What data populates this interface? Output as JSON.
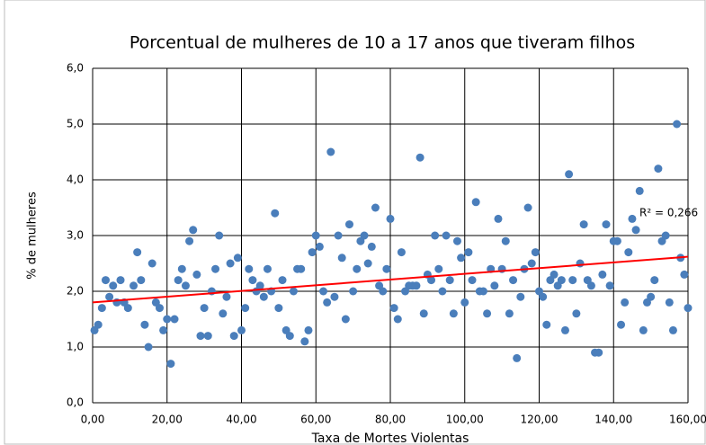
{
  "chart_data": {
    "type": "scatter",
    "title": "Porcentual de mulheres de 10 a 17 anos que tiveram filhos",
    "x_label": "Taxa de Mortes Violentas",
    "y_label": "% de mulheres",
    "annotation": "R² = 0,266",
    "series": [
      {
        "color": "#4a7ebb",
        "x": [
          0.5,
          1.5,
          2.5,
          3.5,
          4.5,
          5.5,
          6.5,
          7.5,
          8.5,
          9.5,
          11,
          12,
          13,
          14,
          15,
          16,
          17,
          18,
          19,
          20,
          21,
          22,
          23,
          24,
          25,
          26,
          27,
          28,
          29,
          30,
          31,
          32,
          33,
          34,
          35,
          36,
          37,
          38,
          39,
          40,
          41,
          42,
          43,
          44,
          45,
          46,
          47,
          48,
          49,
          50,
          51,
          52,
          53,
          54,
          55,
          56,
          57,
          58,
          59,
          60,
          61,
          62,
          63,
          64,
          65,
          66,
          67,
          68,
          69,
          70,
          71,
          72,
          73,
          74,
          75,
          76,
          77,
          78,
          79,
          80,
          81,
          82,
          83,
          84,
          85,
          86,
          87,
          88,
          89,
          90,
          91,
          92,
          93,
          94,
          95,
          96,
          97,
          98,
          99,
          100,
          101,
          102,
          103,
          104,
          105,
          106,
          107,
          108,
          109,
          110,
          111,
          112,
          113,
          114,
          115,
          116,
          117,
          118,
          119,
          120,
          121,
          122,
          123,
          124,
          125,
          126,
          127,
          128,
          129,
          130,
          131,
          132,
          133,
          134,
          135,
          136,
          137,
          138,
          139,
          140,
          141,
          142,
          143,
          144,
          145,
          146,
          147,
          148,
          149,
          150,
          151,
          152,
          153,
          154,
          155,
          156,
          157,
          158,
          159,
          160
        ],
        "values": [
          1.3,
          1.4,
          1.7,
          2.2,
          1.9,
          2.1,
          1.8,
          2.2,
          1.8,
          1.7,
          2.1,
          2.7,
          2.2,
          1.4,
          1.0,
          2.5,
          1.8,
          1.7,
          1.3,
          1.5,
          0.7,
          1.5,
          2.2,
          2.4,
          2.1,
          2.9,
          3.1,
          2.3,
          1.2,
          1.7,
          1.2,
          2.0,
          2.4,
          3.0,
          1.6,
          1.9,
          2.5,
          1.2,
          2.6,
          1.3,
          1.7,
          2.4,
          2.2,
          2.0,
          2.1,
          1.9,
          2.4,
          2.0,
          3.4,
          1.7,
          2.2,
          1.3,
          1.2,
          2.0,
          2.4,
          2.4,
          1.1,
          1.3,
          2.7,
          3.0,
          2.8,
          2.0,
          1.8,
          4.5,
          1.9,
          3.0,
          2.6,
          1.5,
          3.2,
          2.0,
          2.4,
          2.9,
          3.0,
          2.5,
          2.8,
          3.5,
          2.1,
          2.0,
          2.4,
          3.3,
          1.7,
          1.5,
          2.7,
          2.0,
          2.1,
          2.1,
          2.1,
          4.4,
          1.6,
          2.3,
          2.2,
          3.0,
          2.4,
          2.0,
          3.0,
          2.2,
          1.6,
          2.9,
          2.6,
          1.8,
          2.7,
          2.2,
          3.6,
          2.0,
          2.0,
          1.6,
          2.4,
          2.1,
          3.3,
          2.4,
          2.9,
          1.6,
          2.2,
          0.8,
          1.9,
          2.4,
          3.5,
          2.5,
          2.7,
          2.0,
          1.9,
          1.4,
          2.2,
          2.3,
          2.1,
          2.2,
          1.3,
          4.1,
          2.2,
          1.6,
          2.5,
          3.2,
          2.2,
          2.1,
          0.9,
          0.9,
          2.3,
          3.2,
          2.1,
          2.9,
          2.9,
          1.4,
          1.8,
          2.7,
          3.3,
          3.1,
          3.8,
          1.3,
          1.8,
          1.9,
          2.2,
          4.2,
          2.9,
          3.0,
          1.8,
          1.3,
          5.0,
          2.6,
          2.3,
          1.7
        ]
      }
    ],
    "trendline": {
      "color": "#ff0000",
      "x": [
        0,
        160
      ],
      "y": [
        1.8,
        2.62
      ]
    },
    "xlim": [
      0,
      160
    ],
    "ylim": [
      0,
      6
    ],
    "xticks": [
      {
        "value": 0,
        "label": "0,00"
      },
      {
        "value": 20,
        "label": "20,00"
      },
      {
        "value": 40,
        "label": "40,00"
      },
      {
        "value": 60,
        "label": "60,00"
      },
      {
        "value": 80,
        "label": "80,00"
      },
      {
        "value": 100,
        "label": "100,00"
      },
      {
        "value": 120,
        "label": "120,00"
      },
      {
        "value": 140,
        "label": "140,00"
      },
      {
        "value": 160,
        "label": "160,00"
      }
    ],
    "yticks": [
      {
        "value": 0,
        "label": "0,0"
      },
      {
        "value": 1,
        "label": "1,0"
      },
      {
        "value": 2,
        "label": "2,0"
      },
      {
        "value": 3,
        "label": "3,0"
      },
      {
        "value": 4,
        "label": "4,0"
      },
      {
        "value": 5,
        "label": "5,0"
      },
      {
        "value": 6,
        "label": "6,0"
      }
    ],
    "grid": true
  }
}
